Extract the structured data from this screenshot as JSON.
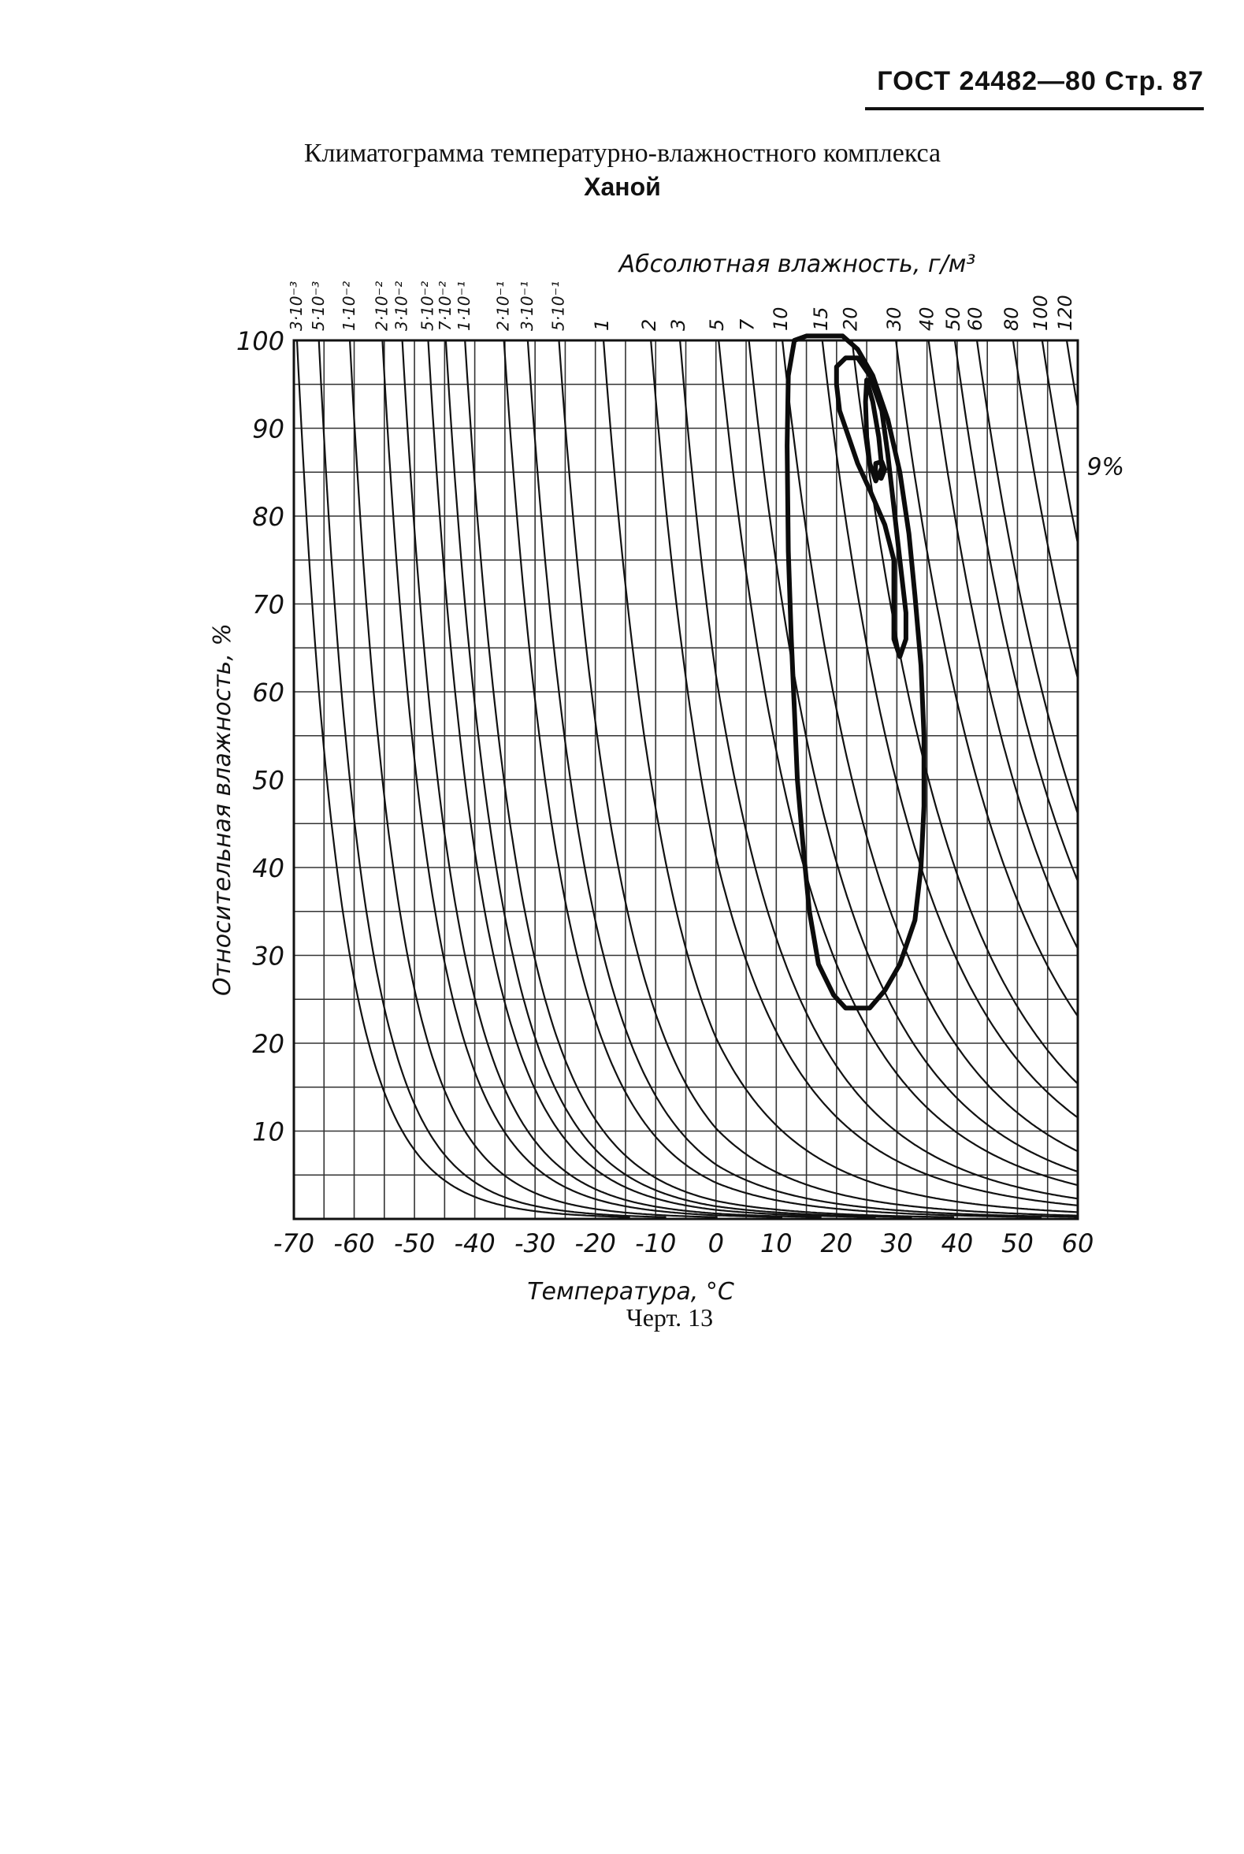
{
  "header": {
    "text": "ГОСТ 24482—80 Стр. 87"
  },
  "title": {
    "line1": "Климатограмма температурно-влажностного комплекса",
    "line2": "Ханой"
  },
  "caption": "Черт. 13",
  "chart_data": {
    "type": "line",
    "title": "Климатограмма температурно-влажностного комплекса Ханой",
    "xlabel": "Температура, °C",
    "ylabel": "Относительная влажность, %",
    "toplabel": "Абсолютная влажность, г/м³",
    "xlim": [
      -70,
      60
    ],
    "ylim": [
      0,
      100
    ],
    "xticks": [
      -70,
      -60,
      -50,
      -40,
      -30,
      -20,
      -10,
      0,
      10,
      20,
      30,
      40,
      50,
      60
    ],
    "xtick_labels": [
      "-70",
      "-60",
      "-50",
      "-40",
      "-30",
      "-20",
      "-10",
      "0",
      "10",
      "20",
      "30",
      "40",
      "50",
      "60"
    ],
    "yticks": [
      10,
      20,
      30,
      40,
      50,
      60,
      70,
      80,
      90,
      100
    ],
    "ytick_labels": [
      "10",
      "20",
      "30",
      "40",
      "50",
      "60",
      "70",
      "80",
      "90",
      "100"
    ],
    "grid": {
      "x_step": 5,
      "y_step": 5
    },
    "abs_humidity_isolines": [
      {
        "label": "3·10⁻³",
        "value": 0.003
      },
      {
        "label": "5·10⁻³",
        "value": 0.005
      },
      {
        "label": "1·10⁻²",
        "value": 0.01
      },
      {
        "label": "2·10⁻²",
        "value": 0.02
      },
      {
        "label": "3·10⁻²",
        "value": 0.03
      },
      {
        "label": "5·10⁻²",
        "value": 0.05
      },
      {
        "label": "7·10⁻²",
        "value": 0.07
      },
      {
        "label": "1·10⁻¹",
        "value": 0.1
      },
      {
        "label": "2·10⁻¹",
        "value": 0.2
      },
      {
        "label": "3·10⁻¹",
        "value": 0.3
      },
      {
        "label": "5·10⁻¹",
        "value": 0.5
      },
      {
        "label": "1",
        "value": 1
      },
      {
        "label": "2",
        "value": 2
      },
      {
        "label": "3",
        "value": 3
      },
      {
        "label": "5",
        "value": 5
      },
      {
        "label": "7",
        "value": 7
      },
      {
        "label": "10",
        "value": 10
      },
      {
        "label": "15",
        "value": 15
      },
      {
        "label": "20",
        "value": 20
      },
      {
        "label": "30",
        "value": 30
      },
      {
        "label": "40",
        "value": 40
      },
      {
        "label": "50",
        "value": 50
      },
      {
        "label": "60",
        "value": 60
      },
      {
        "label": "80",
        "value": 80
      },
      {
        "label": "100",
        "value": 100
      },
      {
        "label": "120",
        "value": 120
      }
    ],
    "annotations": [
      {
        "text": "9%",
        "x": 61.5,
        "y": 85.5
      }
    ],
    "series": [
      {
        "kind": "contour",
        "points": [
          [
            13,
            100
          ],
          [
            15,
            100.5
          ],
          [
            18,
            100.5
          ],
          [
            21,
            100.5
          ],
          [
            23.5,
            99
          ],
          [
            26,
            96
          ],
          [
            28.5,
            91
          ],
          [
            30.5,
            85
          ],
          [
            32,
            78
          ],
          [
            33,
            71
          ],
          [
            34,
            63
          ],
          [
            34.5,
            55
          ],
          [
            34.5,
            47
          ],
          [
            34,
            40
          ],
          [
            33,
            34
          ],
          [
            30.5,
            29
          ],
          [
            28,
            26
          ],
          [
            25.5,
            24
          ],
          [
            21.5,
            24
          ],
          [
            19.5,
            25.5
          ],
          [
            17,
            29
          ],
          [
            15.5,
            35
          ],
          [
            14.5,
            42
          ],
          [
            13.5,
            50
          ],
          [
            13,
            58
          ],
          [
            12.5,
            66
          ],
          [
            12,
            76
          ],
          [
            11.8,
            88
          ],
          [
            12,
            96
          ]
        ]
      },
      {
        "kind": "contour",
        "points": [
          [
            20,
            97
          ],
          [
            21.5,
            98
          ],
          [
            23.5,
            98
          ],
          [
            25.5,
            96
          ],
          [
            27.5,
            92
          ],
          [
            28.5,
            87
          ],
          [
            29.5,
            81
          ],
          [
            30.5,
            75
          ],
          [
            31.5,
            69
          ],
          [
            31.5,
            66
          ],
          [
            30.5,
            64
          ],
          [
            29.5,
            66
          ],
          [
            29.5,
            70
          ],
          [
            29.5,
            75
          ],
          [
            28,
            79
          ],
          [
            25.5,
            83
          ],
          [
            23.5,
            86
          ],
          [
            22,
            89
          ],
          [
            20.5,
            92
          ],
          [
            20,
            95
          ]
        ]
      },
      {
        "kind": "contour",
        "points": [
          [
            25,
            95.5
          ],
          [
            26,
            93
          ],
          [
            27,
            89
          ],
          [
            27.5,
            85.5
          ],
          [
            26.5,
            84
          ],
          [
            25.5,
            86
          ],
          [
            25,
            89
          ],
          [
            24.8,
            93
          ]
        ]
      },
      {
        "kind": "contour",
        "points": [
          [
            26.5,
            86
          ],
          [
            27.5,
            86.2
          ],
          [
            28,
            85.3
          ],
          [
            27.4,
            84.3
          ],
          [
            26.4,
            84.7
          ]
        ]
      }
    ]
  }
}
